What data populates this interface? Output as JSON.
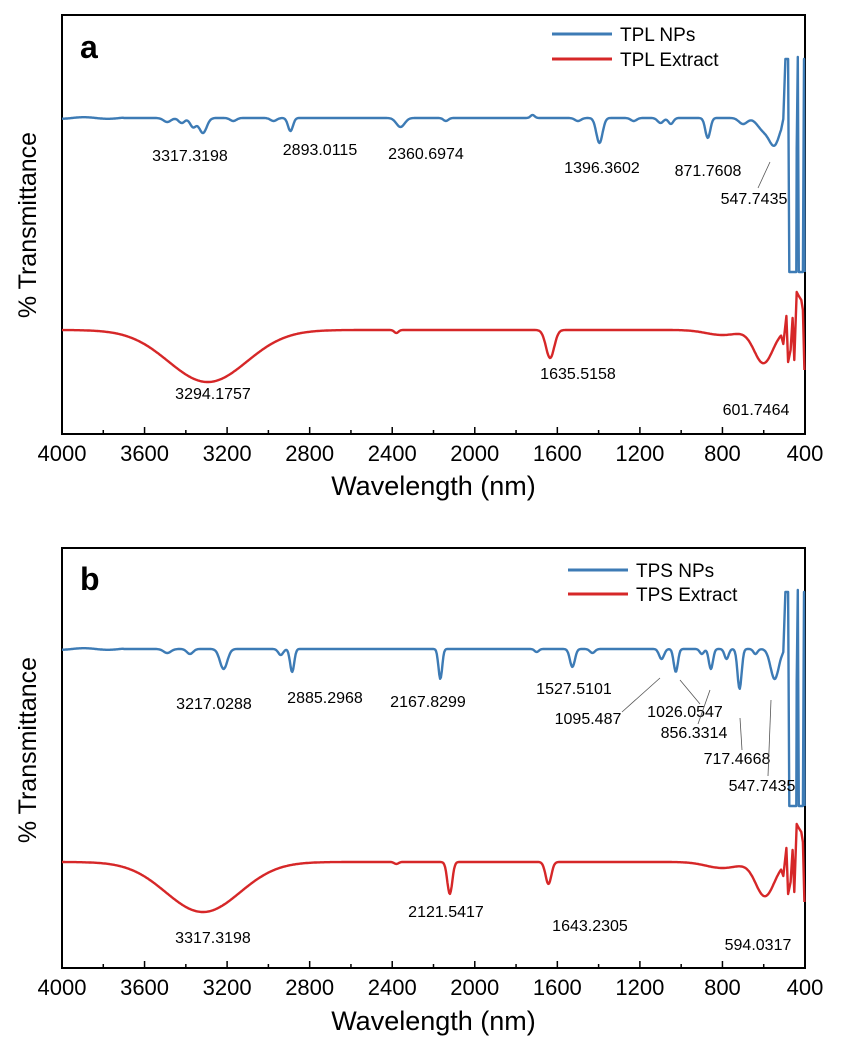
{
  "chart_data": [
    {
      "type": "line",
      "panel_label": "a",
      "xlabel": "Wavelength (nm)",
      "ylabel": "% Transmittance",
      "xlim": [
        4000,
        400
      ],
      "xticks": [
        "4000",
        "3600",
        "3200",
        "2800",
        "2400",
        "2000",
        "1600",
        "1200",
        "800",
        "400"
      ],
      "legend": {
        "position": "top-right",
        "entries": [
          "TPL NPs",
          "TPL Extract"
        ]
      },
      "series": [
        {
          "name": "TPL NPs",
          "color": "#3d7bb5",
          "annotations": [
            "3317.3198",
            "2893.0115",
            "2360.6974",
            "1396.3602",
            "871.7608",
            "547.7435"
          ]
        },
        {
          "name": "TPL Extract",
          "color": "#d62728",
          "annotations": [
            "3294.1757",
            "1635.5158",
            "601.7464"
          ]
        }
      ]
    },
    {
      "type": "line",
      "panel_label": "b",
      "xlabel": "Wavelength (nm)",
      "ylabel": "% Transmittance",
      "xlim": [
        4000,
        400
      ],
      "xticks": [
        "4000",
        "3600",
        "3200",
        "2800",
        "2400",
        "2000",
        "1600",
        "1200",
        "800",
        "400"
      ],
      "legend": {
        "position": "top-right",
        "entries": [
          "TPS NPs",
          "TPS Extract"
        ]
      },
      "series": [
        {
          "name": "TPS NPs",
          "color": "#3d7bb5",
          "annotations": [
            "3217.0288",
            "2885.2968",
            "2167.8299",
            "1527.5101",
            "1095.487",
            "1026.0547",
            "856.3314",
            "717.4668",
            "547.7435"
          ]
        },
        {
          "name": "TPS Extract",
          "color": "#d62728",
          "annotations": [
            "3317.3198",
            "2121.5417",
            "1643.2305",
            "594.0317"
          ]
        }
      ]
    }
  ]
}
